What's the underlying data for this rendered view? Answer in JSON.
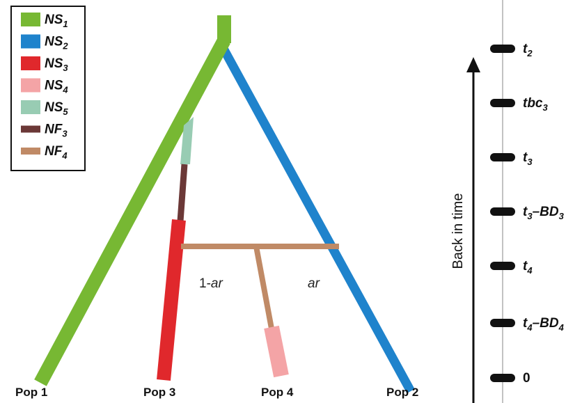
{
  "colors": {
    "ns1": "#77b833",
    "ns2": "#1f83cc",
    "ns3": "#e0282c",
    "ns4": "#f4a4a6",
    "ns5": "#98ccb3",
    "nf3": "#6b3837",
    "nf4": "#c08a66",
    "axis": "#111111",
    "timeline": "#999999",
    "tick": "#111111"
  },
  "legend": [
    {
      "key": "ns1",
      "base": "NS",
      "sub": "1",
      "color": "#77b833"
    },
    {
      "key": "ns2",
      "base": "NS",
      "sub": "2",
      "color": "#1f83cc"
    },
    {
      "key": "ns3",
      "base": "NS",
      "sub": "3",
      "color": "#e0282c"
    },
    {
      "key": "ns4",
      "base": "NS",
      "sub": "4",
      "color": "#f4a4a6"
    },
    {
      "key": "ns5",
      "base": "NS",
      "sub": "5",
      "color": "#98ccb3"
    },
    {
      "key": "nf3",
      "base": "NF",
      "sub": "3",
      "color": "#6b3837"
    },
    {
      "key": "nf4",
      "base": "NF",
      "sub": "4",
      "color": "#c08a66"
    }
  ],
  "populations": [
    "Pop 1",
    "Pop 3",
    "Pop 4",
    "Pop 2"
  ],
  "branch_labels": {
    "left": "1-ar",
    "right": "ar"
  },
  "axis_title": "Back in time",
  "time_points": [
    {
      "base": "t",
      "sub": "2",
      "rest": ""
    },
    {
      "base": "tbc",
      "sub": "3",
      "rest": ""
    },
    {
      "base": "t",
      "sub": "3",
      "rest": ""
    },
    {
      "base": "t",
      "sub": "3",
      "rest": "–BD",
      "sub2": "3"
    },
    {
      "base": "t",
      "sub": "4",
      "rest": ""
    },
    {
      "base": "t",
      "sub": "4",
      "rest": "–BD",
      "sub2": "4"
    },
    {
      "base": "0",
      "sub": "",
      "rest": ""
    }
  ]
}
